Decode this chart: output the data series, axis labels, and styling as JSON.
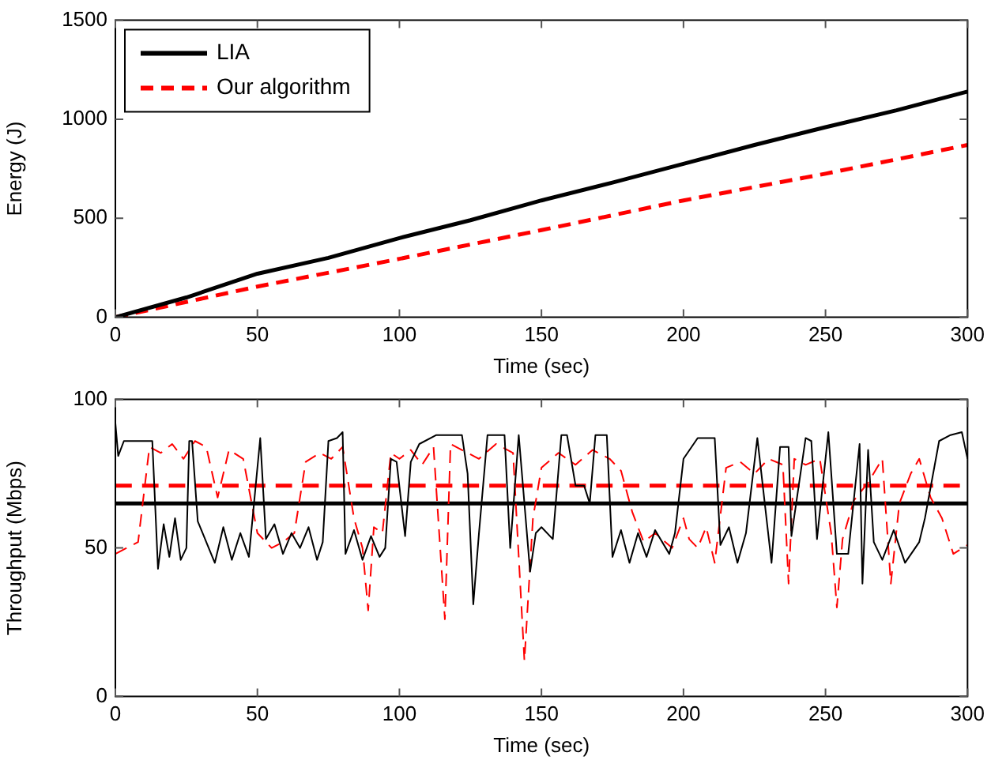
{
  "chart_data": [
    {
      "type": "line",
      "xlabel": "Time (sec)",
      "ylabel": "Energy (J)",
      "xlim": [
        0,
        300
      ],
      "xticks": [
        0,
        50,
        100,
        150,
        200,
        250,
        300
      ],
      "ylim": [
        0,
        1500
      ],
      "yticks": [
        0,
        500,
        1000,
        1500
      ],
      "grid": false,
      "legend": "top left",
      "marker": "none",
      "series": [
        {
          "name": "LIA",
          "color": "#000000",
          "line_style": "solid",
          "x": [
            0,
            25,
            50,
            75,
            100,
            125,
            150,
            175,
            200,
            225,
            250,
            275,
            300
          ],
          "values": [
            0,
            100,
            220,
            300,
            400,
            490,
            590,
            680,
            775,
            870,
            960,
            1045,
            1140
          ]
        },
        {
          "name": "Our algorithm",
          "color": "#ff0000",
          "line_style": "dashed",
          "x": [
            0,
            50,
            100,
            150,
            200,
            250,
            300
          ],
          "values": [
            0,
            155,
            295,
            440,
            590,
            725,
            870
          ]
        }
      ]
    },
    {
      "type": "line",
      "xlabel": "Time (sec)",
      "ylabel": "Throughput (Mbps)",
      "xlim": [
        0,
        300
      ],
      "xticks": [
        0,
        50,
        100,
        150,
        200,
        250,
        300
      ],
      "ylim": [
        0,
        100
      ],
      "yticks": [
        0,
        50,
        100
      ],
      "grid": false,
      "legend": false,
      "marker": "none",
      "ref_lines": [
        {
          "axis": "y",
          "value": 65,
          "label": null,
          "color": "#000000",
          "line_style": "solid"
        },
        {
          "axis": "y",
          "value": 71,
          "label": null,
          "color": "#ff0000",
          "line_style": "dashed"
        }
      ],
      "series": [
        {
          "color": "#000000",
          "line_style": "solid",
          "x": [
            0,
            1,
            3,
            8,
            13,
            15,
            17,
            19,
            21,
            23,
            25,
            26,
            27,
            29,
            32,
            35,
            38,
            41,
            44,
            47,
            51,
            53,
            56,
            59,
            62,
            65,
            68,
            71,
            73,
            75,
            78,
            80,
            81,
            84,
            87,
            90,
            93,
            95,
            97,
            99,
            102,
            104,
            107,
            113,
            122,
            124,
            126,
            128,
            131,
            137,
            139,
            142,
            146,
            148,
            150,
            154,
            157,
            159,
            162,
            165,
            167,
            169,
            173,
            175,
            178,
            181,
            184,
            187,
            190,
            195,
            197,
            200,
            205,
            211,
            213,
            216,
            219,
            222,
            226,
            231,
            234,
            237,
            238,
            243,
            245,
            247,
            251,
            254,
            258,
            262,
            263,
            265,
            267,
            270,
            274,
            278,
            283,
            285,
            290,
            294,
            298,
            300
          ],
          "values": [
            92,
            81,
            86,
            86,
            86,
            43,
            58,
            47,
            60,
            46,
            50,
            86,
            86,
            59,
            52,
            45,
            57,
            46,
            55,
            47,
            87,
            53,
            58,
            48,
            55,
            50,
            57,
            46,
            52,
            86,
            87,
            89,
            48,
            56,
            46,
            54,
            47,
            50,
            80,
            79,
            54,
            79,
            85,
            88,
            88,
            75,
            31,
            55,
            88,
            88,
            50,
            88,
            42,
            55,
            57,
            53,
            88,
            88,
            71,
            71,
            65,
            88,
            88,
            47,
            56,
            45,
            55,
            47,
            56,
            48,
            55,
            80,
            87,
            87,
            51,
            57,
            45,
            55,
            87,
            45,
            84,
            84,
            54,
            87,
            86,
            53,
            89,
            48,
            48,
            85,
            38,
            83,
            52,
            46,
            56,
            45,
            52,
            60,
            86,
            88,
            89,
            80
          ]
        },
        {
          "color": "#ff0000",
          "line_style": "dashed",
          "x": [
            0,
            4,
            8,
            12,
            16,
            20,
            24,
            28,
            32,
            36,
            40,
            45,
            50,
            55,
            59,
            63,
            67,
            72,
            76,
            80,
            84,
            87,
            89,
            91,
            94,
            97,
            100,
            104,
            108,
            112,
            116,
            118,
            122,
            128,
            134,
            140,
            144,
            147,
            150,
            156,
            162,
            168,
            174,
            178,
            182,
            186,
            190,
            196,
            200,
            202,
            205,
            208,
            211,
            215,
            220,
            225,
            230,
            235,
            237,
            239,
            243,
            248,
            252,
            254,
            256,
            260,
            265,
            270,
            273,
            276,
            280,
            283,
            287,
            291,
            295,
            300
          ],
          "values": [
            48,
            50,
            52,
            84,
            82,
            85,
            80,
            86,
            84,
            67,
            83,
            80,
            55,
            50,
            52,
            55,
            79,
            82,
            80,
            84,
            60,
            50,
            29,
            57,
            55,
            82,
            80,
            83,
            78,
            84,
            26,
            85,
            83,
            80,
            85,
            82,
            12,
            60,
            77,
            82,
            78,
            83,
            80,
            76,
            62,
            52,
            55,
            50,
            60,
            53,
            50,
            57,
            45,
            77,
            79,
            75,
            80,
            78,
            38,
            80,
            78,
            80,
            55,
            30,
            53,
            66,
            72,
            80,
            38,
            65,
            75,
            80,
            67,
            60,
            48,
            51
          ]
        }
      ]
    }
  ]
}
